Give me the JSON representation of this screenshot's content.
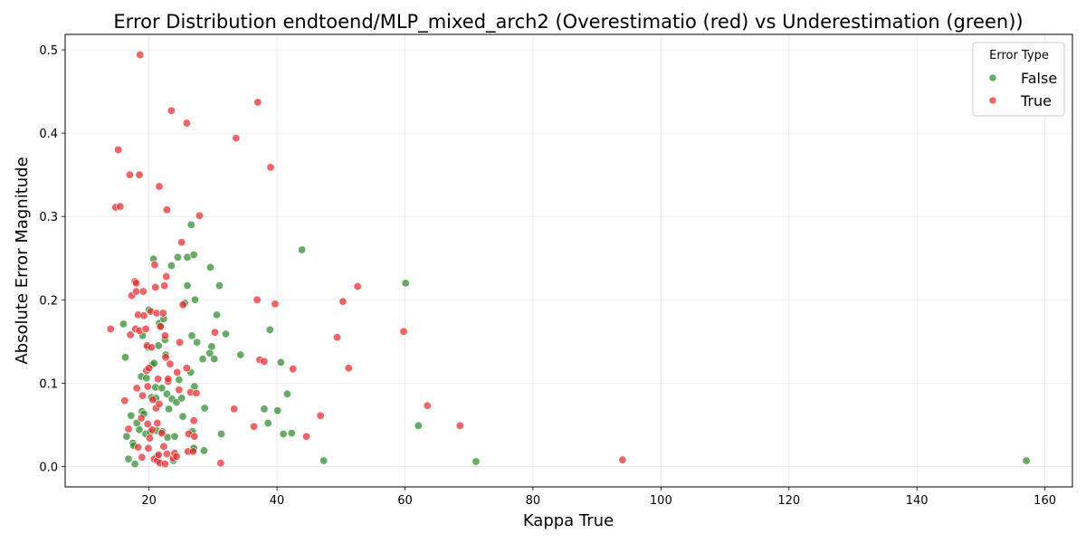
{
  "chart_data": {
    "type": "scatter",
    "title": "Error Distribution endtoend/MLP_mixed_arch2 (Overestimatio (red) vs Underestimation (green))",
    "xlabel": "Kappa True",
    "ylabel": "Absolute Error Magnitude",
    "xlim": [
      6.9,
      164.3
    ],
    "ylim": [
      -0.0245,
      0.5185
    ],
    "xticks": [
      "20",
      "40",
      "60",
      "80",
      "100",
      "120",
      "140",
      "160"
    ],
    "yticks": [
      "0.0",
      "0.1",
      "0.2",
      "0.3",
      "0.4",
      "0.5"
    ],
    "grid": true,
    "legend": {
      "title": "Error Type",
      "placement": "top-right"
    },
    "series": [
      {
        "name": "False",
        "color": "#2e8b2e",
        "points": [
          [
            16.0,
            0.171
          ],
          [
            16.3,
            0.131
          ],
          [
            16.5,
            0.036
          ],
          [
            16.8,
            0.009
          ],
          [
            17.2,
            0.061
          ],
          [
            17.5,
            0.028
          ],
          [
            17.6,
            0.025
          ],
          [
            17.8,
            0.003
          ],
          [
            18.1,
            0.052
          ],
          [
            18.5,
            0.044
          ],
          [
            18.8,
            0.108
          ],
          [
            18.9,
            0.066
          ],
          [
            19.0,
            0.157
          ],
          [
            19.2,
            0.063
          ],
          [
            19.5,
            0.039
          ],
          [
            19.6,
            0.106
          ],
          [
            19.8,
            0.143
          ],
          [
            20.0,
            0.188
          ],
          [
            20.2,
            0.041
          ],
          [
            20.4,
            0.083
          ],
          [
            20.5,
            0.122
          ],
          [
            20.7,
            0.249
          ],
          [
            20.8,
            0.124
          ],
          [
            21.0,
            0.095
          ],
          [
            21.1,
            0.082
          ],
          [
            21.2,
            0.043
          ],
          [
            21.3,
            0.012
          ],
          [
            21.5,
            0.145
          ],
          [
            21.6,
            0.172
          ],
          [
            21.8,
            0.168
          ],
          [
            22.0,
            0.094
          ],
          [
            22.1,
            0.042
          ],
          [
            22.3,
            0.177
          ],
          [
            22.5,
            0.152
          ],
          [
            22.6,
            0.134
          ],
          [
            22.8,
            0.087
          ],
          [
            22.9,
            0.035
          ],
          [
            23.1,
            0.069
          ],
          [
            23.5,
            0.241
          ],
          [
            23.6,
            0.081
          ],
          [
            23.8,
            0.007
          ],
          [
            24.0,
            0.036
          ],
          [
            24.3,
            0.077
          ],
          [
            24.5,
            0.251
          ],
          [
            24.7,
            0.104
          ],
          [
            25.1,
            0.082
          ],
          [
            25.3,
            0.06
          ],
          [
            25.6,
            0.196
          ],
          [
            26.0,
            0.251
          ],
          [
            26.0,
            0.217
          ],
          [
            26.5,
            0.113
          ],
          [
            26.6,
            0.29
          ],
          [
            26.7,
            0.157
          ],
          [
            26.8,
            0.042
          ],
          [
            26.9,
            0.02
          ],
          [
            27.0,
            0.022
          ],
          [
            27.0,
            0.254
          ],
          [
            27.1,
            0.096
          ],
          [
            27.2,
            0.2
          ],
          [
            27.5,
            0.149
          ],
          [
            28.4,
            0.129
          ],
          [
            28.6,
            0.019
          ],
          [
            28.7,
            0.07
          ],
          [
            29.5,
            0.136
          ],
          [
            29.6,
            0.239
          ],
          [
            29.8,
            0.144
          ],
          [
            30.2,
            0.129
          ],
          [
            30.6,
            0.182
          ],
          [
            31.0,
            0.217
          ],
          [
            31.3,
            0.039
          ],
          [
            32.0,
            0.159
          ],
          [
            34.3,
            0.134
          ],
          [
            38.0,
            0.069
          ],
          [
            38.6,
            0.052
          ],
          [
            38.9,
            0.164
          ],
          [
            40.1,
            0.067
          ],
          [
            40.6,
            0.125
          ],
          [
            41.0,
            0.039
          ],
          [
            41.6,
            0.087
          ],
          [
            42.3,
            0.04
          ],
          [
            43.9,
            0.26
          ],
          [
            47.3,
            0.007
          ],
          [
            60.1,
            0.22
          ],
          [
            62.1,
            0.049
          ],
          [
            71.1,
            0.006
          ],
          [
            157.1,
            0.007
          ]
        ]
      },
      {
        "name": "True",
        "color": "#e8282d",
        "points": [
          [
            14.0,
            0.165
          ],
          [
            14.8,
            0.311
          ],
          [
            15.2,
            0.38
          ],
          [
            15.5,
            0.312
          ],
          [
            16.2,
            0.079
          ],
          [
            16.8,
            0.045
          ],
          [
            17.0,
            0.35
          ],
          [
            17.1,
            0.158
          ],
          [
            17.3,
            0.205
          ],
          [
            17.8,
            0.222
          ],
          [
            17.9,
            0.165
          ],
          [
            18.0,
            0.22
          ],
          [
            18.0,
            0.21
          ],
          [
            18.1,
            0.094
          ],
          [
            18.3,
            0.182
          ],
          [
            18.3,
            0.023
          ],
          [
            18.5,
            0.163
          ],
          [
            18.5,
            0.35
          ],
          [
            18.6,
            0.494
          ],
          [
            18.8,
            0.058
          ],
          [
            18.9,
            0.011
          ],
          [
            19.0,
            0.085
          ],
          [
            19.1,
            0.21
          ],
          [
            19.2,
            0.181
          ],
          [
            19.5,
            0.165
          ],
          [
            19.6,
            0.115
          ],
          [
            19.7,
            0.145
          ],
          [
            19.8,
            0.051
          ],
          [
            19.8,
            0.096
          ],
          [
            19.9,
            0.022
          ],
          [
            20.0,
            0.118
          ],
          [
            20.1,
            0.034
          ],
          [
            20.3,
            0.186
          ],
          [
            20.4,
            0.143
          ],
          [
            20.5,
            0.044
          ],
          [
            20.6,
            0.08
          ],
          [
            20.8,
            0.009
          ],
          [
            20.9,
            0.242
          ],
          [
            21.0,
            0.215
          ],
          [
            21.1,
            0.07
          ],
          [
            21.2,
            0.184
          ],
          [
            21.3,
            0.052
          ],
          [
            21.3,
            0.007
          ],
          [
            21.4,
            0.105
          ],
          [
            21.5,
            0.014
          ],
          [
            21.6,
            0.075
          ],
          [
            21.6,
            0.336
          ],
          [
            21.7,
            0.004
          ],
          [
            21.8,
            0.168
          ],
          [
            22.0,
            0.04
          ],
          [
            22.2,
            0.184
          ],
          [
            22.3,
            0.024
          ],
          [
            22.4,
            0.217
          ],
          [
            22.5,
            0.003
          ],
          [
            22.5,
            0.157
          ],
          [
            22.6,
            0.131
          ],
          [
            22.7,
            0.228
          ],
          [
            22.8,
            0.308
          ],
          [
            22.8,
            0.015
          ],
          [
            23.0,
            0.102
          ],
          [
            23.0,
            0.105
          ],
          [
            23.3,
            0.123
          ],
          [
            23.5,
            0.427
          ],
          [
            23.8,
            0.01
          ],
          [
            24.0,
            0.016
          ],
          [
            24.3,
            0.012
          ],
          [
            24.4,
            0.113
          ],
          [
            24.7,
            0.092
          ],
          [
            24.8,
            0.149
          ],
          [
            25.1,
            0.269
          ],
          [
            25.3,
            0.194
          ],
          [
            25.9,
            0.118
          ],
          [
            25.9,
            0.412
          ],
          [
            26.1,
            0.018
          ],
          [
            26.2,
            0.039
          ],
          [
            26.5,
            0.089
          ],
          [
            26.9,
            0.018
          ],
          [
            27.0,
            0.055
          ],
          [
            27.1,
            0.036
          ],
          [
            27.4,
            0.088
          ],
          [
            27.9,
            0.301
          ],
          [
            30.3,
            0.161
          ],
          [
            31.2,
            0.004
          ],
          [
            33.3,
            0.069
          ],
          [
            33.6,
            0.394
          ],
          [
            36.4,
            0.048
          ],
          [
            36.9,
            0.2
          ],
          [
            37.0,
            0.437
          ],
          [
            37.3,
            0.128
          ],
          [
            38.0,
            0.126
          ],
          [
            39.0,
            0.359
          ],
          [
            39.7,
            0.195
          ],
          [
            42.5,
            0.117
          ],
          [
            44.6,
            0.036
          ],
          [
            46.8,
            0.061
          ],
          [
            49.4,
            0.155
          ],
          [
            50.3,
            0.198
          ],
          [
            51.2,
            0.118
          ],
          [
            52.6,
            0.216
          ],
          [
            59.8,
            0.162
          ],
          [
            63.5,
            0.073
          ],
          [
            68.6,
            0.049
          ],
          [
            94.0,
            0.008
          ]
        ]
      }
    ]
  }
}
